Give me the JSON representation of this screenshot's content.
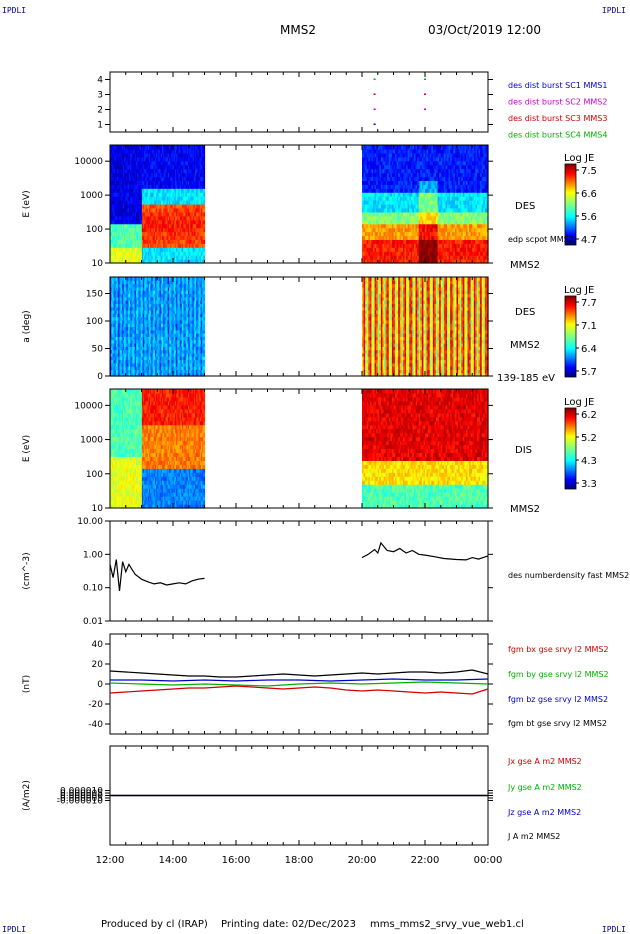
{
  "corner_tl": "IPDLI",
  "corner_tr": "IPDLI",
  "corner_bl": "IPDLI",
  "corner_br": "IPDLI",
  "header": {
    "spacecraft": "MMS2",
    "datetime": "03/Oct/2019 12:00"
  },
  "footer": {
    "produced_by": "Produced by cl (IRAP)",
    "printing_date": "Printing date: 02/Dec/2023",
    "script": "mms_mms2_srvy_vue_web1.cl"
  },
  "time_axis": {
    "ticks": [
      "12:00",
      "14:00",
      "16:00",
      "18:00",
      "20:00",
      "22:00",
      "00:00"
    ]
  },
  "colors": {
    "red": "#d00000",
    "green": "#00b000",
    "blue": "#0000c8",
    "magenta": "#c800c8",
    "black": "#000000",
    "darkblue": "#00008b"
  },
  "chart_data": [
    {
      "type": "scatter",
      "panel": "burst",
      "ylim": [
        0.5,
        4.5
      ],
      "ticks": [
        "1",
        "2",
        "3",
        "4"
      ],
      "legend": [
        {
          "label": "des dist burst SC1 MMS1",
          "color": "#0000c8"
        },
        {
          "label": "des dist burst SC2 MMS2",
          "color": "#c800c8"
        },
        {
          "label": "des dist burst SC3 MMS3",
          "color": "#d00000"
        },
        {
          "label": "des dist burst SC4 MMS4",
          "color": "#00b000"
        }
      ],
      "points": [
        {
          "x": 20.4,
          "y": 4,
          "color": "#00b000"
        },
        {
          "x": 22.0,
          "y": 4,
          "color": "#00b000"
        },
        {
          "x": 20.4,
          "y": 3,
          "color": "#d00000"
        },
        {
          "x": 22.0,
          "y": 3,
          "color": "#d00000"
        },
        {
          "x": 20.4,
          "y": 2,
          "color": "#c800c8"
        },
        {
          "x": 22.0,
          "y": 2,
          "color": "#c800c8"
        },
        {
          "x": 20.4,
          "y": 1,
          "color": "#0000c8"
        }
      ]
    },
    {
      "type": "heatmap",
      "panel": "des_energy",
      "ylabel": "E (eV)",
      "yscale": "log",
      "ylim": [
        10,
        30000
      ],
      "ticks": [
        "10",
        "100",
        "1000",
        "10000"
      ],
      "species": "DES",
      "extra_label": "edp scpot MMS2",
      "probe": "MMS2",
      "colorbar": {
        "title": "Log JE",
        "ticks": [
          "7.5",
          "6.6",
          "5.6",
          "4.7"
        ],
        "range": [
          4.7,
          7.5
        ]
      },
      "data_intervals": [
        [
          12.0,
          15.0
        ],
        [
          20.0,
          24.0
        ]
      ]
    },
    {
      "type": "heatmap",
      "panel": "des_pitch",
      "ylabel": "a (deg)",
      "ylim": [
        0,
        180
      ],
      "ticks": [
        "0",
        "50",
        "100",
        "150"
      ],
      "species": "DES",
      "probe": "MMS2",
      "energy_range": "139-185 eV",
      "colorbar": {
        "title": "Log JE",
        "ticks": [
          "7.7",
          "7.1",
          "6.4",
          "5.7"
        ],
        "range": [
          5.7,
          7.7
        ]
      },
      "data_intervals": [
        [
          12.0,
          15.0
        ],
        [
          20.0,
          24.0
        ]
      ]
    },
    {
      "type": "heatmap",
      "panel": "dis_energy",
      "ylabel": "E (eV)",
      "yscale": "log",
      "ylim": [
        10,
        30000
      ],
      "ticks": [
        "10",
        "100",
        "1000",
        "10000"
      ],
      "species": "DIS",
      "probe": "MMS2",
      "colorbar": {
        "title": "Log JE",
        "ticks": [
          "6.2",
          "5.2",
          "4.3",
          "3.3"
        ],
        "range": [
          3.3,
          6.2
        ]
      },
      "data_intervals": [
        [
          12.0,
          15.0
        ],
        [
          20.0,
          24.0
        ]
      ]
    },
    {
      "type": "line",
      "panel": "density",
      "ylabel": "(cm^-3)",
      "yscale": "log",
      "ylim": [
        0.01,
        10
      ],
      "ticks": [
        "0.01",
        "0.10",
        "1.00",
        "10.00"
      ],
      "series": [
        {
          "name": "des numberdensity fast MMS2",
          "color": "#000000",
          "segments": [
            {
              "x": [
                12.0,
                12.1,
                12.2,
                12.3,
                12.4,
                12.5,
                12.6,
                12.8,
                13.0,
                13.2,
                13.4,
                13.6,
                13.8,
                14.0,
                14.2,
                14.4,
                14.6,
                14.8,
                15.0
              ],
              "y": [
                0.5,
                0.2,
                0.7,
                0.08,
                0.6,
                0.3,
                0.5,
                0.25,
                0.18,
                0.15,
                0.13,
                0.14,
                0.12,
                0.13,
                0.14,
                0.13,
                0.16,
                0.18,
                0.19
              ]
            },
            {
              "x": [
                20.0,
                20.2,
                20.4,
                20.5,
                20.6,
                20.8,
                21.0,
                21.2,
                21.4,
                21.6,
                21.8,
                22.0,
                22.3,
                22.6,
                23.0,
                23.3,
                23.5,
                23.7,
                24.0
              ],
              "y": [
                0.8,
                1.0,
                1.4,
                1.1,
                2.2,
                1.3,
                1.2,
                1.5,
                1.1,
                1.3,
                1.0,
                0.95,
                0.85,
                0.75,
                0.7,
                0.68,
                0.8,
                0.72,
                0.9
              ]
            }
          ]
        }
      ]
    },
    {
      "type": "line",
      "panel": "magnetic_field",
      "ylabel": "(nT)",
      "ylim": [
        -50,
        50
      ],
      "ticks": [
        "-40",
        "-20",
        "0",
        "20",
        "40"
      ],
      "series": [
        {
          "name": "fgm bx gse srvy l2 MMS2",
          "color": "#d00000",
          "x": [
            12.0,
            12.5,
            13.0,
            13.5,
            14.0,
            14.5,
            15.0,
            15.5,
            16.0,
            16.5,
            17.0,
            17.5,
            18.0,
            18.5,
            19.0,
            19.5,
            20.0,
            20.5,
            21.0,
            21.5,
            22.0,
            22.5,
            23.0,
            23.5,
            24.0
          ],
          "y": [
            -9,
            -8,
            -7,
            -6,
            -5,
            -4,
            -4,
            -3,
            -2,
            -3,
            -4,
            -5,
            -4,
            -3,
            -4,
            -6,
            -7,
            -6,
            -7,
            -8,
            -9,
            -8,
            -9,
            -10,
            -5
          ]
        },
        {
          "name": "fgm by gse srvy l2 MMS2",
          "color": "#00b000",
          "x": [
            12.0,
            13.0,
            14.0,
            15.0,
            16.0,
            17.0,
            18.0,
            19.0,
            20.0,
            21.0,
            22.0,
            23.0,
            24.0
          ],
          "y": [
            1,
            0,
            -1,
            0,
            -1,
            -2,
            0,
            1,
            0,
            1,
            2,
            1,
            0
          ]
        },
        {
          "name": "fgm bz gse srvy l2 MMS2",
          "color": "#0000c8",
          "x": [
            12.0,
            13.0,
            14.0,
            15.0,
            16.0,
            17.0,
            18.0,
            19.0,
            20.0,
            21.0,
            22.0,
            23.0,
            24.0
          ],
          "y": [
            4,
            4,
            3,
            4,
            3,
            4,
            4,
            3,
            4,
            5,
            4,
            4,
            5
          ]
        },
        {
          "name": "fgm bt gse srvy l2 MMS2",
          "color": "#000000",
          "x": [
            12.0,
            12.5,
            13.0,
            13.5,
            14.0,
            14.5,
            15.0,
            15.5,
            16.0,
            16.5,
            17.0,
            17.5,
            18.0,
            18.5,
            19.0,
            19.5,
            20.0,
            20.5,
            21.0,
            21.5,
            22.0,
            22.5,
            23.0,
            23.5,
            24.0
          ],
          "y": [
            13,
            12,
            11,
            10,
            9,
            8,
            8,
            7,
            7,
            8,
            9,
            10,
            9,
            8,
            9,
            10,
            11,
            10,
            11,
            12,
            12,
            11,
            12,
            14,
            10
          ]
        }
      ]
    },
    {
      "type": "line",
      "panel": "current_density",
      "ylabel": "(A/m2)",
      "ylim": [
        -0.0001,
        0.0001
      ],
      "ticks": [
        "-0.000010",
        "-0.000005",
        "0.000000",
        "0.000005",
        "0.000010"
      ],
      "series": [
        {
          "name": "Jx gse A m2 MMS2",
          "color": "#d00000",
          "x": [
            12.0,
            24.0
          ],
          "y": [
            0,
            0
          ]
        },
        {
          "name": "Jy gse A m2 MMS2",
          "color": "#00b000",
          "x": [
            12.0,
            24.0
          ],
          "y": [
            0,
            0
          ]
        },
        {
          "name": "Jz gse A m2 MMS2",
          "color": "#0000c8",
          "x": [
            12.0,
            24.0
          ],
          "y": [
            0,
            0
          ]
        },
        {
          "name": "J A m2 MMS2",
          "color": "#000000",
          "x": [
            12.0,
            24.0
          ],
          "y": [
            0,
            0
          ]
        }
      ]
    }
  ]
}
